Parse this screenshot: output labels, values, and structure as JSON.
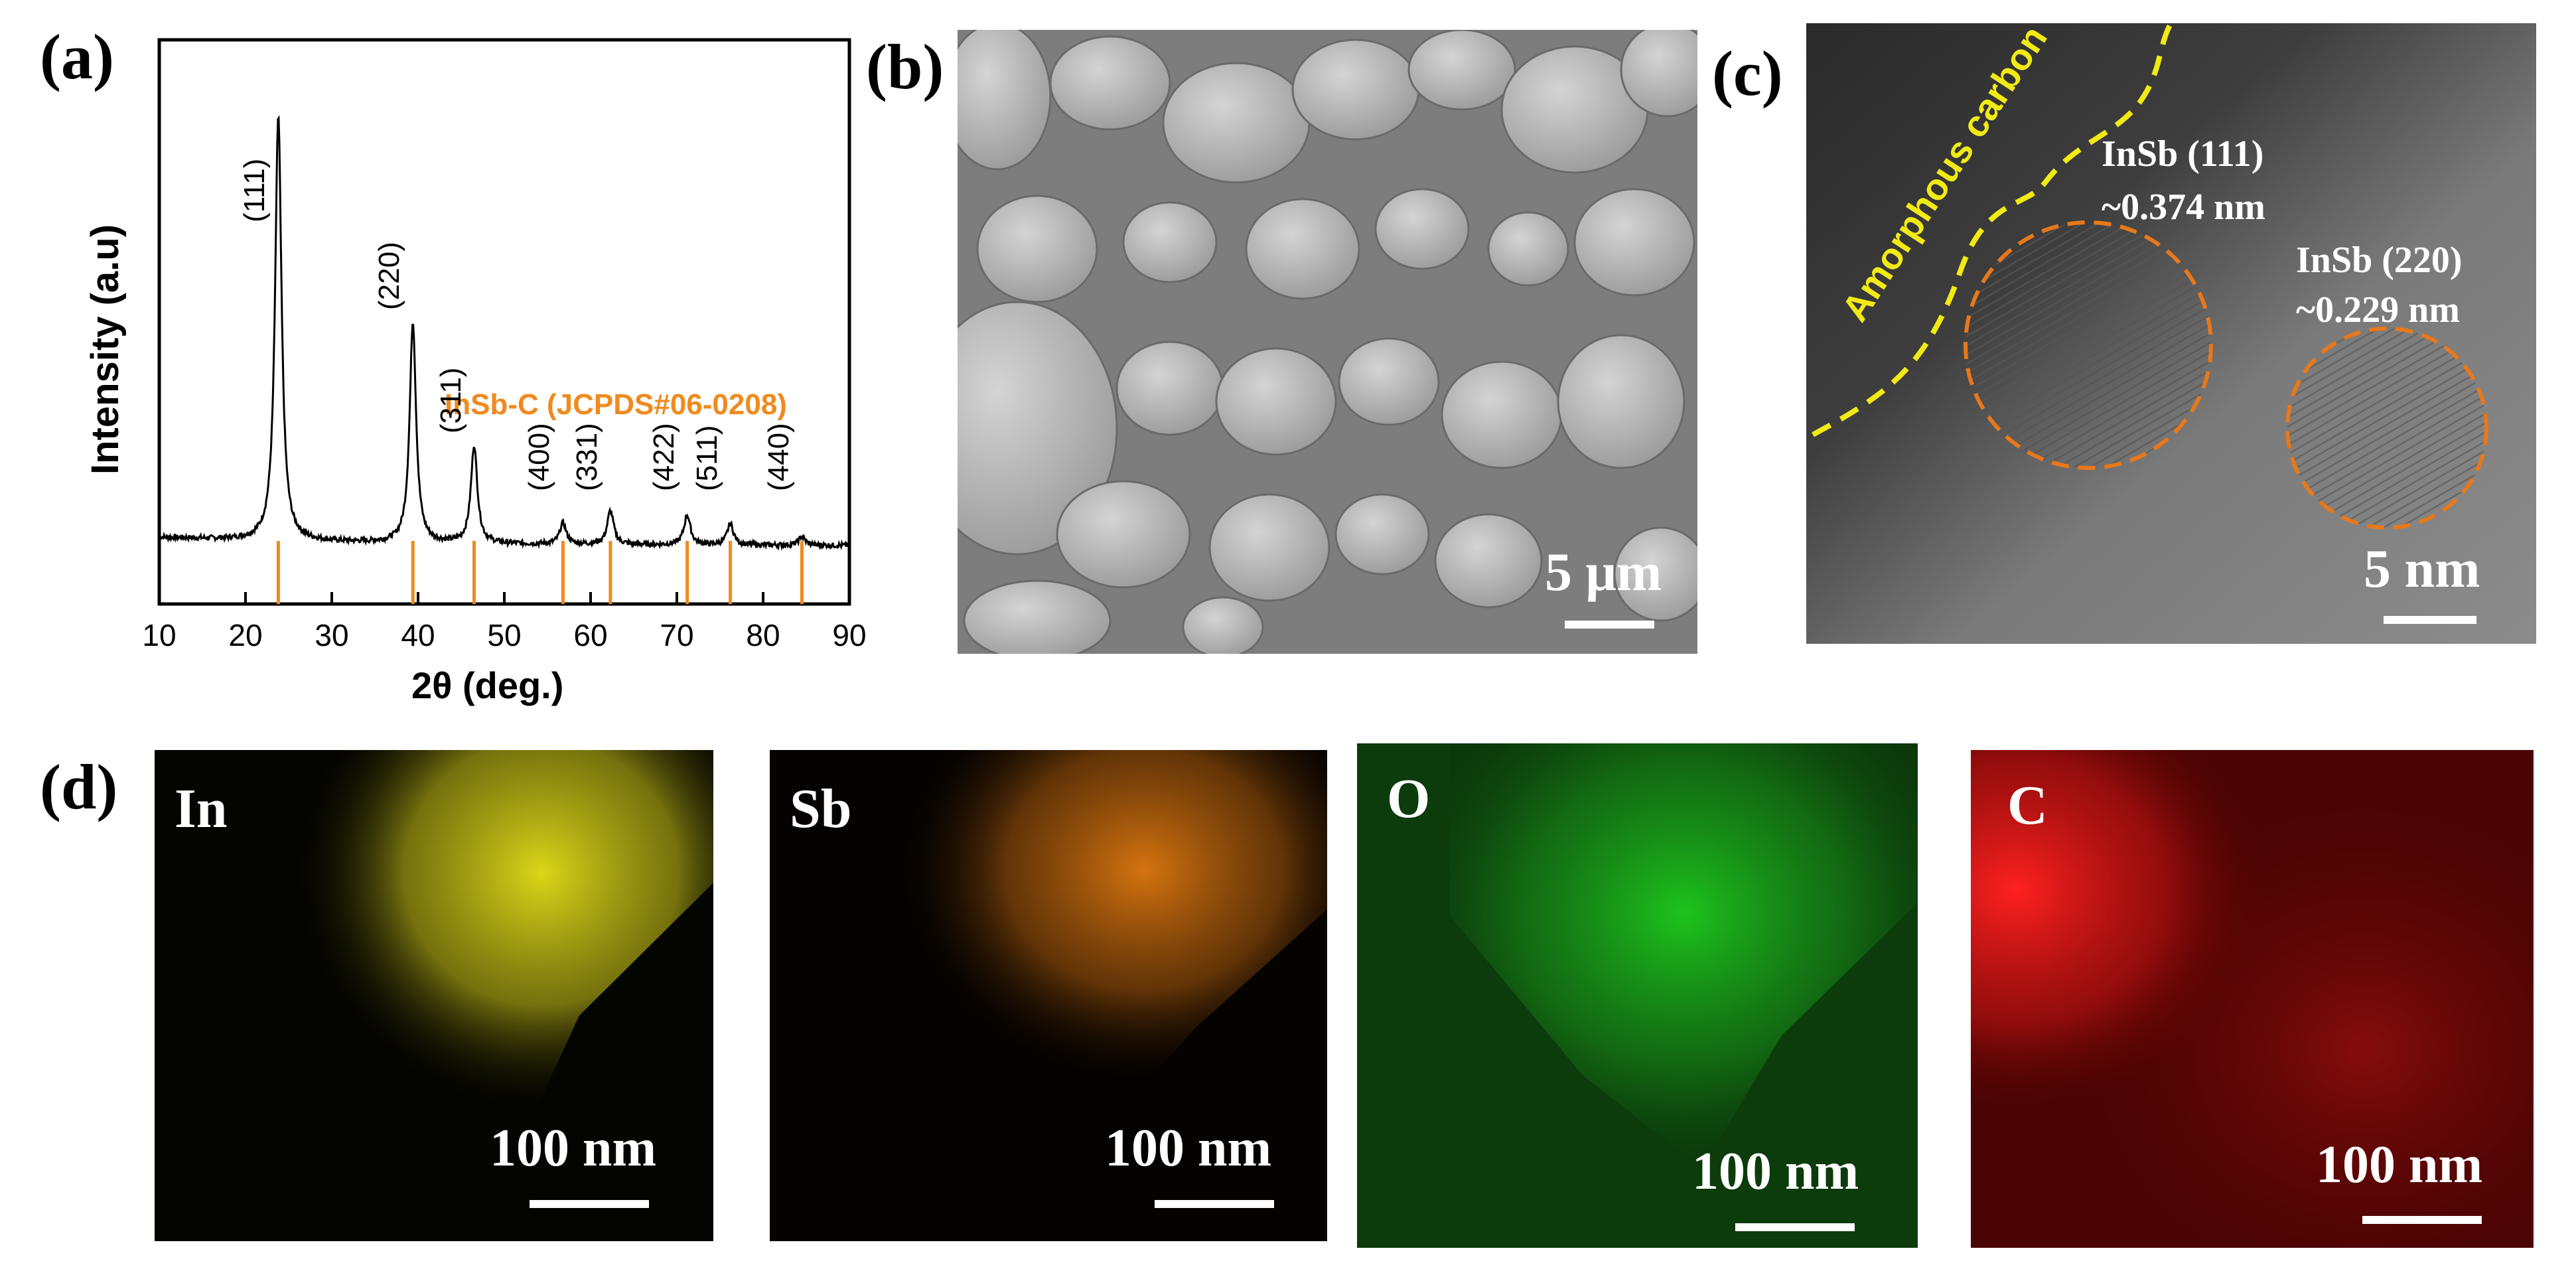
{
  "panels": {
    "a": {
      "label": "(a)"
    },
    "b": {
      "label": "(b)",
      "scale": "5 μm"
    },
    "c": {
      "label": "(c)",
      "scale": "5 nm",
      "amorphous": "Amorphous carbon",
      "ann1_line1": "InSb (111)",
      "ann1_line2": "~0.374 nm",
      "ann2_line1": "InSb (220)",
      "ann2_line2": "~0.229 nm"
    },
    "d": {
      "label": "(d)",
      "maps": [
        {
          "element": "In",
          "scale": "100 nm",
          "color": "#e6e21a"
        },
        {
          "element": "Sb",
          "scale": "100 nm",
          "color": "#e07a10"
        },
        {
          "element": "O",
          "scale": "100 nm",
          "color": "#1ecb1e"
        },
        {
          "element": "C",
          "scale": "100 nm",
          "color": "#e01414"
        }
      ]
    }
  },
  "chart_data": {
    "type": "line",
    "xlabel": "2θ (deg.)",
    "ylabel": "Intensity (a.u)",
    "xlim": [
      10,
      90
    ],
    "xticks": [
      "10",
      "20",
      "30",
      "40",
      "50",
      "60",
      "70",
      "80",
      "90"
    ],
    "reference_label": "InSb-C (JCPDS#06-0208)",
    "reference_color": "#f08a1e",
    "reference_lines": [
      23.8,
      39.4,
      46.5,
      56.8,
      62.3,
      71.2,
      76.2,
      84.5
    ],
    "peaks": [
      {
        "label": "(111)",
        "x": 23.8,
        "rel_intensity": 1.0
      },
      {
        "label": "(220)",
        "x": 39.4,
        "rel_intensity": 0.52
      },
      {
        "label": "(311)",
        "x": 46.5,
        "rel_intensity": 0.23
      },
      {
        "label": "(400)",
        "x": 56.8,
        "rel_intensity": 0.05
      },
      {
        "label": "(331)",
        "x": 62.3,
        "rel_intensity": 0.08
      },
      {
        "label": "(422)",
        "x": 71.2,
        "rel_intensity": 0.07
      },
      {
        "label": "(511)",
        "x": 76.2,
        "rel_intensity": 0.05
      },
      {
        "label": "(440)",
        "x": 84.5,
        "rel_intensity": 0.02
      }
    ]
  }
}
